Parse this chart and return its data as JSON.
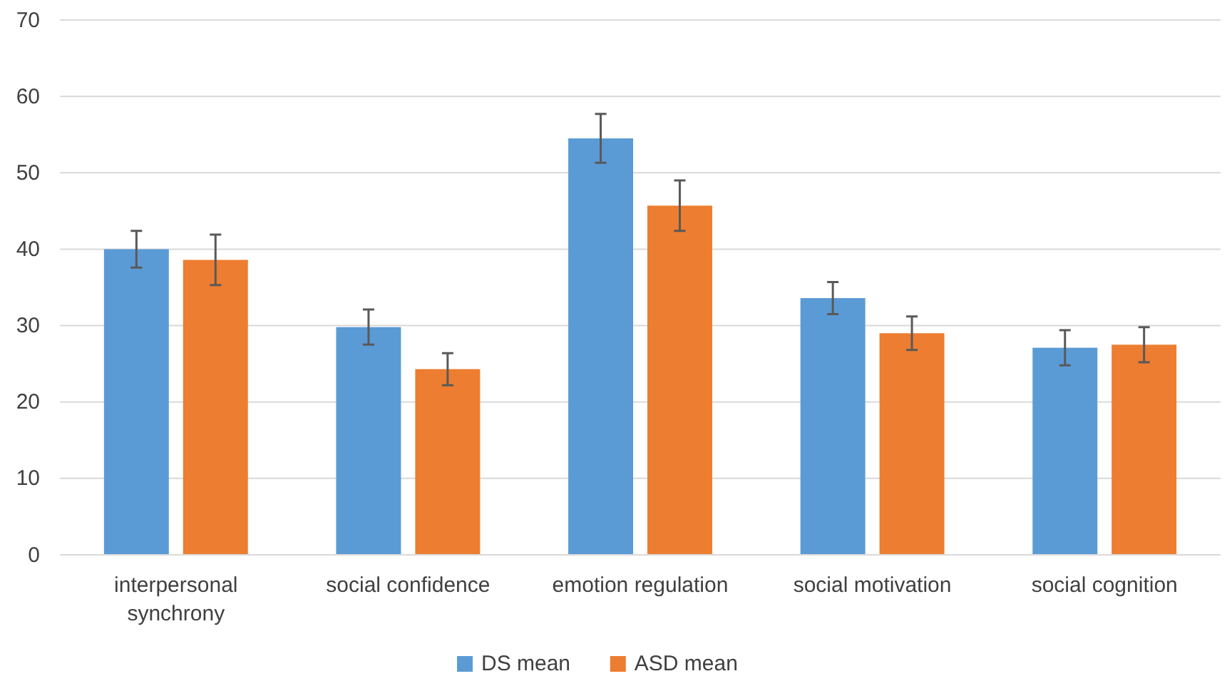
{
  "chart_data": {
    "type": "bar",
    "categories": [
      "interpersonal synchrony",
      "social confidence",
      "emotion regulation",
      "social motivation",
      "social cognition"
    ],
    "series": [
      {
        "name": "DS mean",
        "color": "#5b9bd5",
        "values": [
          40.0,
          29.8,
          54.5,
          33.6,
          27.1
        ],
        "errors": [
          2.4,
          2.3,
          3.2,
          2.1,
          2.3
        ]
      },
      {
        "name": "ASD mean",
        "color": "#ed7d31",
        "values": [
          38.6,
          24.3,
          45.7,
          29.0,
          27.5
        ],
        "errors": [
          3.3,
          2.1,
          3.3,
          2.2,
          2.3
        ]
      }
    ],
    "ylim": [
      0,
      70
    ],
    "yticks": [
      0,
      10,
      20,
      30,
      40,
      50,
      60,
      70
    ],
    "grid": "y",
    "legend": "bottom"
  }
}
